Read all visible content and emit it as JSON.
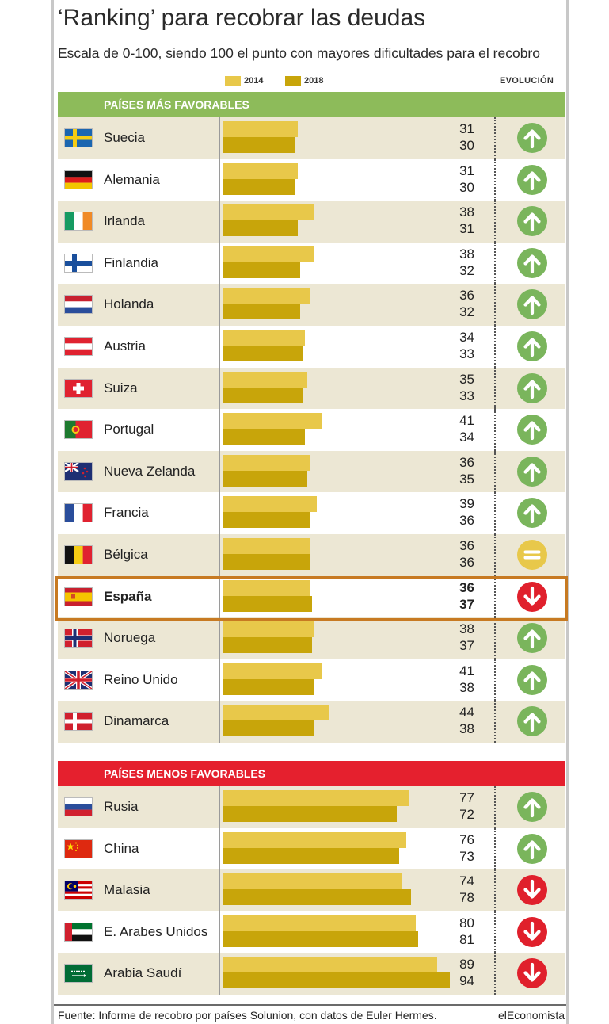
{
  "header": {
    "title": "‘Ranking’ para recobrar las deudas",
    "subtitle": "Escala de 0-100, siendo 100 el punto con mayores dificultades para el recobro",
    "evolution_label": "EVOLUCIÓN"
  },
  "legend": [
    {
      "label": "2014",
      "color": "#e8c84a"
    },
    {
      "label": "2018",
      "color": "#c8a50a"
    }
  ],
  "colors": {
    "shade": "#ece7d4",
    "favorable_header": "#8dbb5a",
    "unfavorable_header": "#e5202e",
    "up": "#7ab55c",
    "down": "#e0202c",
    "equal": "#e8c84a",
    "highlight": "#c77a22"
  },
  "footer": {
    "source": "Fuente: Informe de recobro por países Solunion, con datos de Euler Hermes.",
    "brand": "elEconomista"
  },
  "chart_data": {
    "type": "bar",
    "orientation": "horizontal",
    "title": "‘Ranking’ para recobrar las deudas",
    "subtitle": "Escala de 0-100, siendo 100 el punto con mayores dificultades para el recobro",
    "series_names": [
      "2014",
      "2018"
    ],
    "xlim": [
      0,
      100
    ],
    "grid": false,
    "legend_position": "top",
    "groups": [
      {
        "title": "PAÍSES MÁS FAVORABLES",
        "rows": [
          {
            "country": "Suecia",
            "flag": "sweden-flag-icon",
            "v2014": 31,
            "v2018": 30,
            "evolution": "up"
          },
          {
            "country": "Alemania",
            "flag": "germany-flag-icon",
            "v2014": 31,
            "v2018": 30,
            "evolution": "up"
          },
          {
            "country": "Irlanda",
            "flag": "ireland-flag-icon",
            "v2014": 38,
            "v2018": 31,
            "evolution": "up"
          },
          {
            "country": "Finlandia",
            "flag": "finland-flag-icon",
            "v2014": 38,
            "v2018": 32,
            "evolution": "up"
          },
          {
            "country": "Holanda",
            "flag": "netherlands-flag-icon",
            "v2014": 36,
            "v2018": 32,
            "evolution": "up"
          },
          {
            "country": "Austria",
            "flag": "austria-flag-icon",
            "v2014": 34,
            "v2018": 33,
            "evolution": "up"
          },
          {
            "country": "Suiza",
            "flag": "switzerland-flag-icon",
            "v2014": 35,
            "v2018": 33,
            "evolution": "up"
          },
          {
            "country": "Portugal",
            "flag": "portugal-flag-icon",
            "v2014": 41,
            "v2018": 34,
            "evolution": "up"
          },
          {
            "country": "Nueva Zelanda",
            "flag": "new-zealand-flag-icon",
            "v2014": 36,
            "v2018": 35,
            "evolution": "up"
          },
          {
            "country": "Francia",
            "flag": "france-flag-icon",
            "v2014": 39,
            "v2018": 36,
            "evolution": "up"
          },
          {
            "country": "Bélgica",
            "flag": "belgium-flag-icon",
            "v2014": 36,
            "v2018": 36,
            "evolution": "equal"
          },
          {
            "country": "España",
            "flag": "spain-flag-icon",
            "v2014": 36,
            "v2018": 37,
            "evolution": "down",
            "highlight": true
          },
          {
            "country": "Noruega",
            "flag": "norway-flag-icon",
            "v2014": 38,
            "v2018": 37,
            "evolution": "up"
          },
          {
            "country": "Reino Unido",
            "flag": "uk-flag-icon",
            "v2014": 41,
            "v2018": 38,
            "evolution": "up"
          },
          {
            "country": "Dinamarca",
            "flag": "denmark-flag-icon",
            "v2014": 44,
            "v2018": 38,
            "evolution": "up"
          }
        ]
      },
      {
        "title": "PAÍSES MENOS FAVORABLES",
        "rows": [
          {
            "country": "Rusia",
            "flag": "russia-flag-icon",
            "v2014": 77,
            "v2018": 72,
            "evolution": "up"
          },
          {
            "country": "China",
            "flag": "china-flag-icon",
            "v2014": 76,
            "v2018": 73,
            "evolution": "up"
          },
          {
            "country": "Malasia",
            "flag": "malaysia-flag-icon",
            "v2014": 74,
            "v2018": 78,
            "evolution": "down"
          },
          {
            "country": "E. Arabes Unidos",
            "flag": "uae-flag-icon",
            "v2014": 80,
            "v2018": 81,
            "evolution": "down"
          },
          {
            "country": "Arabia Saudí",
            "flag": "saudi-arabia-flag-icon",
            "v2014": 89,
            "v2018": 94,
            "evolution": "down"
          }
        ]
      }
    ]
  }
}
